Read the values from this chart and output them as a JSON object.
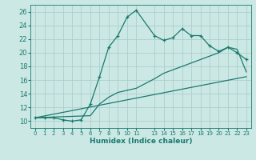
{
  "xlabel": "Humidex (Indice chaleur)",
  "ylabel": "",
  "background_color": "#cce8e5",
  "line_color": "#1a7a6e",
  "grid_color": "#aacfcb",
  "xlim": [
    -0.5,
    23.5
  ],
  "ylim": [
    9.0,
    27.0
  ],
  "yticks": [
    10,
    12,
    14,
    16,
    18,
    20,
    22,
    24,
    26
  ],
  "xtick_positions": [
    0,
    1,
    2,
    3,
    4,
    5,
    6,
    7,
    8,
    9,
    10,
    11,
    13,
    14,
    15,
    16,
    17,
    18,
    19,
    20,
    21,
    22,
    23
  ],
  "xtick_labels": [
    "0",
    "1",
    "2",
    "3",
    "4",
    "5",
    "6",
    "7",
    "8",
    "9",
    "10",
    "11",
    "13",
    "14",
    "15",
    "16",
    "17",
    "18",
    "19",
    "20",
    "21",
    "22",
    "23"
  ],
  "series1_x": [
    0,
    1,
    2,
    3,
    4,
    5,
    6,
    7,
    8,
    9,
    10,
    11,
    13,
    14,
    15,
    16,
    17,
    18,
    19,
    20,
    21,
    22,
    23
  ],
  "series1_y": [
    10.5,
    10.5,
    10.5,
    10.2,
    10.0,
    10.2,
    12.5,
    16.5,
    20.8,
    22.5,
    25.2,
    26.2,
    22.5,
    21.8,
    22.2,
    23.5,
    22.5,
    22.5,
    21.0,
    20.2,
    20.8,
    20.0,
    19.0
  ],
  "series2_x": [
    0,
    6,
    7,
    8,
    9,
    10,
    11,
    13,
    14,
    15,
    16,
    17,
    18,
    19,
    20,
    21,
    22,
    23
  ],
  "series2_y": [
    10.5,
    10.8,
    12.5,
    13.5,
    14.2,
    14.5,
    14.8,
    16.2,
    17.0,
    17.5,
    18.0,
    18.5,
    19.0,
    19.5,
    20.0,
    20.8,
    20.5,
    17.2
  ],
  "series3_x": [
    0,
    23
  ],
  "series3_y": [
    10.5,
    16.5
  ]
}
